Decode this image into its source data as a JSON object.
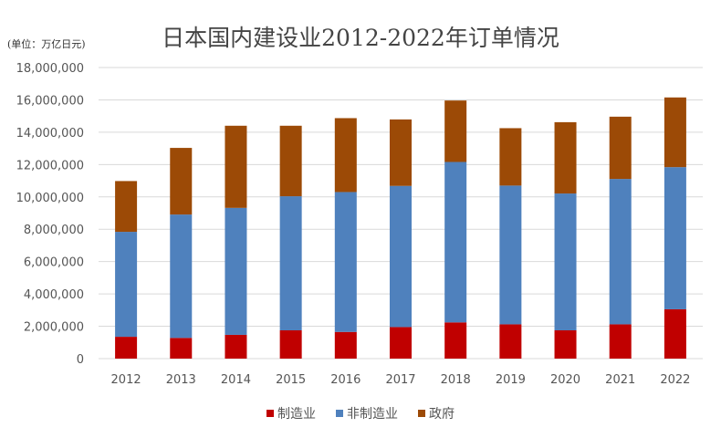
{
  "chart_data": {
    "type": "bar",
    "stacked": true,
    "title": "日本国内建设业2012-2022年订单情况",
    "unit_label": "(单位：万亿日元)",
    "xlabel": "",
    "ylabel": "",
    "ylim": [
      0,
      18000000
    ],
    "yticks": [
      "0",
      "2,000,000",
      "4,000,000",
      "6,000,000",
      "8,000,000",
      "10,000,000",
      "12,000,000",
      "14,000,000",
      "16,000,000",
      "18,000,000"
    ],
    "grid": true,
    "legend_position": "bottom",
    "categories": [
      "2012",
      "2013",
      "2014",
      "2015",
      "2016",
      "2017",
      "2018",
      "2019",
      "2020",
      "2021",
      "2022"
    ],
    "series": [
      {
        "name": "制造业",
        "color": "#C00000",
        "values": [
          1350000,
          1280000,
          1470000,
          1750000,
          1650000,
          1950000,
          2240000,
          2120000,
          1750000,
          2120000,
          3050000
        ]
      },
      {
        "name": "非制造业",
        "color": "#4F81BD",
        "values": [
          6490000,
          7630000,
          7850000,
          8290000,
          8650000,
          8730000,
          9920000,
          8580000,
          8460000,
          8990000,
          8790000
        ]
      },
      {
        "name": "政府",
        "color": "#9C4A06",
        "values": [
          3140000,
          4120000,
          5080000,
          4360000,
          4570000,
          4110000,
          3800000,
          3550000,
          4410000,
          3850000,
          4310000
        ]
      }
    ]
  }
}
